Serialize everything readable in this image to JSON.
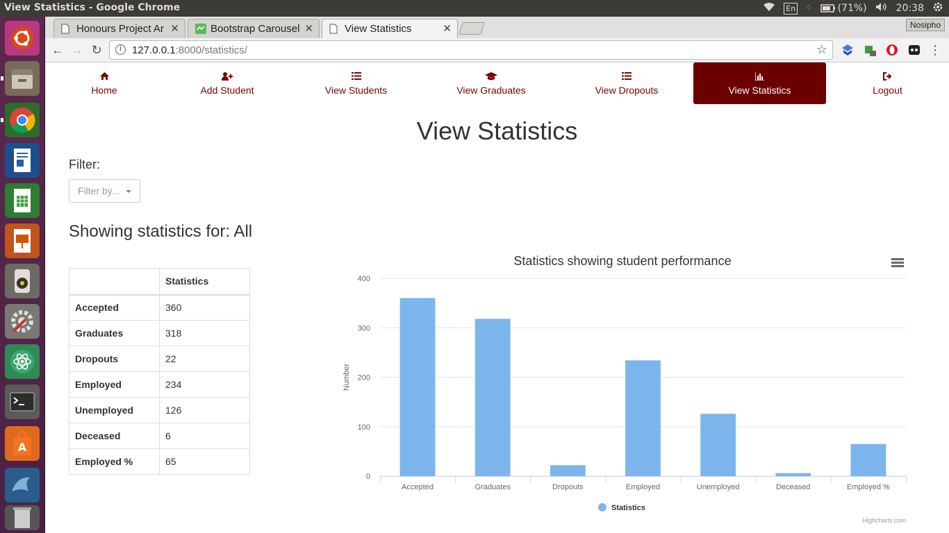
{
  "os": {
    "window_title": "View Statistics - Google Chrome",
    "keyboard": "En",
    "battery": "(71%)",
    "time": "20:38"
  },
  "browser": {
    "tabs": [
      {
        "title": "Honours Project Ar",
        "icon": "page-icon"
      },
      {
        "title": "Bootstrap Carousel",
        "icon": "codepen-icon"
      },
      {
        "title": "View Statistics",
        "icon": "page-icon"
      }
    ],
    "profile_name": "Nosipho",
    "url_host": "127.0.0.1",
    "url_rest": ":8000/statistics/"
  },
  "navbar": {
    "items": [
      {
        "label": "Home",
        "icon": "home-icon"
      },
      {
        "label": "Add Student",
        "icon": "user-plus-icon"
      },
      {
        "label": "View Students",
        "icon": "list-icon"
      },
      {
        "label": "View Graduates",
        "icon": "graduation-cap-icon"
      },
      {
        "label": "View Dropouts",
        "icon": "list-icon"
      },
      {
        "label": "View Statistics",
        "icon": "bar-chart-icon"
      },
      {
        "label": "Logout",
        "icon": "logout-icon"
      }
    ],
    "active_color": "#6b0000",
    "text_color": "#7a0000"
  },
  "main": {
    "title": "View Statistics",
    "filter_label": "Filter:",
    "filter_placeholder": "Filter by...",
    "showing_text": "Showing statistics for: All"
  },
  "table": {
    "header": [
      "",
      "Statistics"
    ],
    "rows": [
      {
        "label": "Accepted",
        "value": "360"
      },
      {
        "label": "Graduates",
        "value": "318"
      },
      {
        "label": "Dropouts",
        "value": "22"
      },
      {
        "label": "Employed",
        "value": "234"
      },
      {
        "label": "Unemployed",
        "value": "126"
      },
      {
        "label": "Deceased",
        "value": "6"
      },
      {
        "label": "Employed %",
        "value": "65"
      }
    ]
  },
  "chart_data": {
    "type": "bar",
    "title": "Statistics showing student performance",
    "xlabel": "",
    "ylabel": "Number",
    "ylim": [
      0,
      400
    ],
    "yticks": [
      0,
      100,
      200,
      300,
      400
    ],
    "categories": [
      "Accepted",
      "Graduates",
      "Dropouts",
      "Employed",
      "Unemployed",
      "Deceased",
      "Employed %"
    ],
    "series": [
      {
        "name": "Statistics",
        "values": [
          360,
          318,
          22,
          234,
          126,
          6,
          65
        ],
        "color": "#7cb5ec"
      }
    ],
    "legend": "bottom-center",
    "credit": "Highcharts.com",
    "grid": true
  }
}
